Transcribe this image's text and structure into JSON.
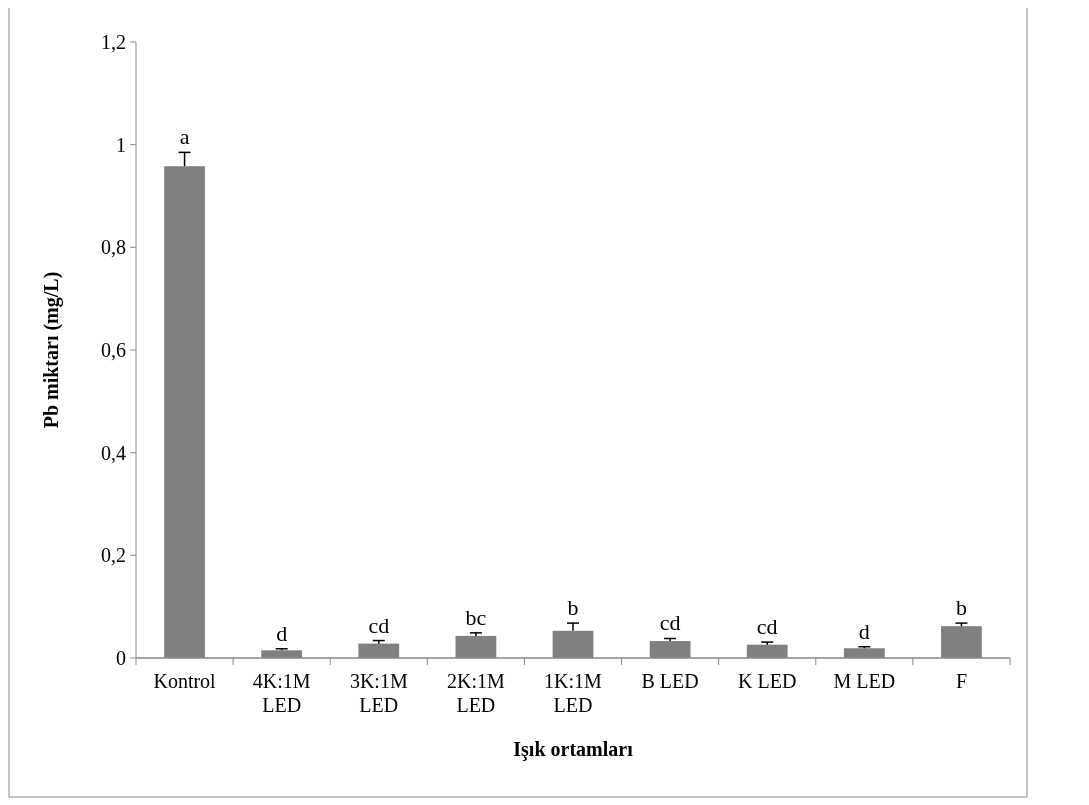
{
  "chart_data": {
    "type": "bar",
    "xlabel": "Işık ortamları",
    "ylabel": "Pb miktarı (mg/L)",
    "categories": [
      "Kontrol",
      "4K:1M LED",
      "3K:1M LED",
      "2K:1M LED",
      "1K:1M LED",
      "B LED",
      "K LED",
      "M LED",
      "F"
    ],
    "values": [
      0.958,
      0.015,
      0.028,
      0.043,
      0.053,
      0.033,
      0.026,
      0.019,
      0.062
    ],
    "errors": [
      0.027,
      0.003,
      0.006,
      0.006,
      0.015,
      0.005,
      0.005,
      0.003,
      0.006
    ],
    "color": "#808080",
    "ylim": [
      0,
      1.2
    ],
    "yticks": [
      0,
      {
        "value": 0.2,
        "label": "0,2"
      },
      {
        "value": 0.4,
        "label": "0,4"
      },
      {
        "value": 0.6,
        "label": "0,6"
      },
      {
        "value": 0.8,
        "label": "0,8"
      },
      1,
      {
        "value": 1.2,
        "label": "1,2"
      }
    ],
    "annotations": [
      {
        "text": "a",
        "x": "Kontrol",
        "y": 0.985
      },
      {
        "text": "d",
        "x": "4K:1M LED",
        "y": 0.018
      },
      {
        "text": "cd",
        "x": "3K:1M LED",
        "y": 0.034
      },
      {
        "text": "bc",
        "x": "2K:1M LED",
        "y": 0.049
      },
      {
        "text": "b",
        "x": "1K:1M LED",
        "y": 0.068
      },
      {
        "text": "cd",
        "x": "B LED",
        "y": 0.038
      },
      {
        "text": "cd",
        "x": "K LED",
        "y": 0.031
      },
      {
        "text": "d",
        "x": "M LED",
        "y": 0.022
      },
      {
        "text": "b",
        "x": "F",
        "y": 0.068
      }
    ]
  }
}
